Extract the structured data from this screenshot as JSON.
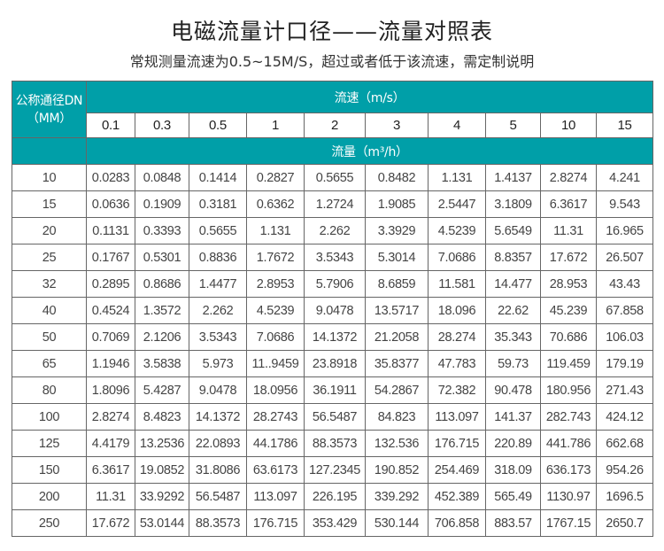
{
  "title": "电磁流量计口径——流量对照表",
  "subtitle": "常规测量流速为0.5~15M/S，超过或者低于该流速，需定制说明",
  "table": {
    "dn_header_line1": "公称通径DN",
    "dn_header_line2": "（MM）",
    "velocity_header": "流速（m/s）",
    "flow_header": "流量（m³/h）",
    "velocities": [
      "0.1",
      "0.3",
      "0.5",
      "1",
      "2",
      "3",
      "4",
      "5",
      "10",
      "15"
    ],
    "rows": [
      {
        "dn": "10",
        "values": [
          "0.0283",
          "0.0848",
          "0.1414",
          "0.2827",
          "0.5655",
          "0.8482",
          "1.131",
          "1.4137",
          "2.8274",
          "4.241"
        ]
      },
      {
        "dn": "15",
        "values": [
          "0.0636",
          "0.1909",
          "0.3181",
          "0.6362",
          "1.2724",
          "1.9085",
          "2.5447",
          "3.1809",
          "6.3617",
          "9.543"
        ]
      },
      {
        "dn": "20",
        "values": [
          "0.1131",
          "0.3393",
          "0.5655",
          "1.131",
          "2.262",
          "3.3929",
          "4.5239",
          "5.6549",
          "11.31",
          "16.965"
        ]
      },
      {
        "dn": "25",
        "values": [
          "0.1767",
          "0.5301",
          "0.8836",
          "1.7672",
          "3.5343",
          "5.3014",
          "7.0686",
          "8.8357",
          "17.672",
          "26.507"
        ]
      },
      {
        "dn": "32",
        "values": [
          "0.2895",
          "0.8686",
          "1.4477",
          "2.8953",
          "5.7906",
          "8.6859",
          "11.581",
          "14.477",
          "28.953",
          "43.43"
        ]
      },
      {
        "dn": "40",
        "values": [
          "0.4524",
          "1.3572",
          "2.262",
          "4.5239",
          "9.0478",
          "13.5717",
          "18.096",
          "22.62",
          "45.239",
          "67.858"
        ]
      },
      {
        "dn": "50",
        "values": [
          "0.7069",
          "2.1206",
          "3.5343",
          "7.0686",
          "14.1372",
          "21.2058",
          "28.274",
          "35.343",
          "70.686",
          "106.03"
        ]
      },
      {
        "dn": "65",
        "values": [
          "1.1946",
          "3.5838",
          "5.973",
          "11..9459",
          "23.8918",
          "35.8377",
          "47.783",
          "59.73",
          "119.459",
          "179.19"
        ]
      },
      {
        "dn": "80",
        "values": [
          "1.8096",
          "5.4287",
          "9.0478",
          "18.0956",
          "36.1911",
          "54.2867",
          "72.382",
          "90.478",
          "180.956",
          "271.43"
        ]
      },
      {
        "dn": "100",
        "values": [
          "2.8274",
          "8.4823",
          "14.1372",
          "28.2743",
          "56.5487",
          "84.823",
          "113.097",
          "141.37",
          "282.743",
          "424.12"
        ]
      },
      {
        "dn": "125",
        "values": [
          "4.4179",
          "13.2536",
          "22.0893",
          "44.1786",
          "88.3573",
          "132.536",
          "176.715",
          "220.89",
          "441.786",
          "662.68"
        ]
      },
      {
        "dn": "150",
        "values": [
          "6.3617",
          "19.0852",
          "31.8086",
          "63.6173",
          "127.2345",
          "190.852",
          "254.469",
          "318.09",
          "636.173",
          "954.26"
        ]
      },
      {
        "dn": "200",
        "values": [
          "11.31",
          "33.9292",
          "56.5487",
          "113.097",
          "226.195",
          "339.292",
          "452.389",
          "565.49",
          "1130.97",
          "1696.5"
        ]
      },
      {
        "dn": "250",
        "values": [
          "17.672",
          "53.0144",
          "88.3573",
          "176.715",
          "353.429",
          "530.144",
          "706.858",
          "883.57",
          "1767.15",
          "2650.7"
        ]
      }
    ]
  },
  "colors": {
    "header_bg": "#009fa8",
    "header_text": "#ffffff",
    "border": "#666666"
  }
}
